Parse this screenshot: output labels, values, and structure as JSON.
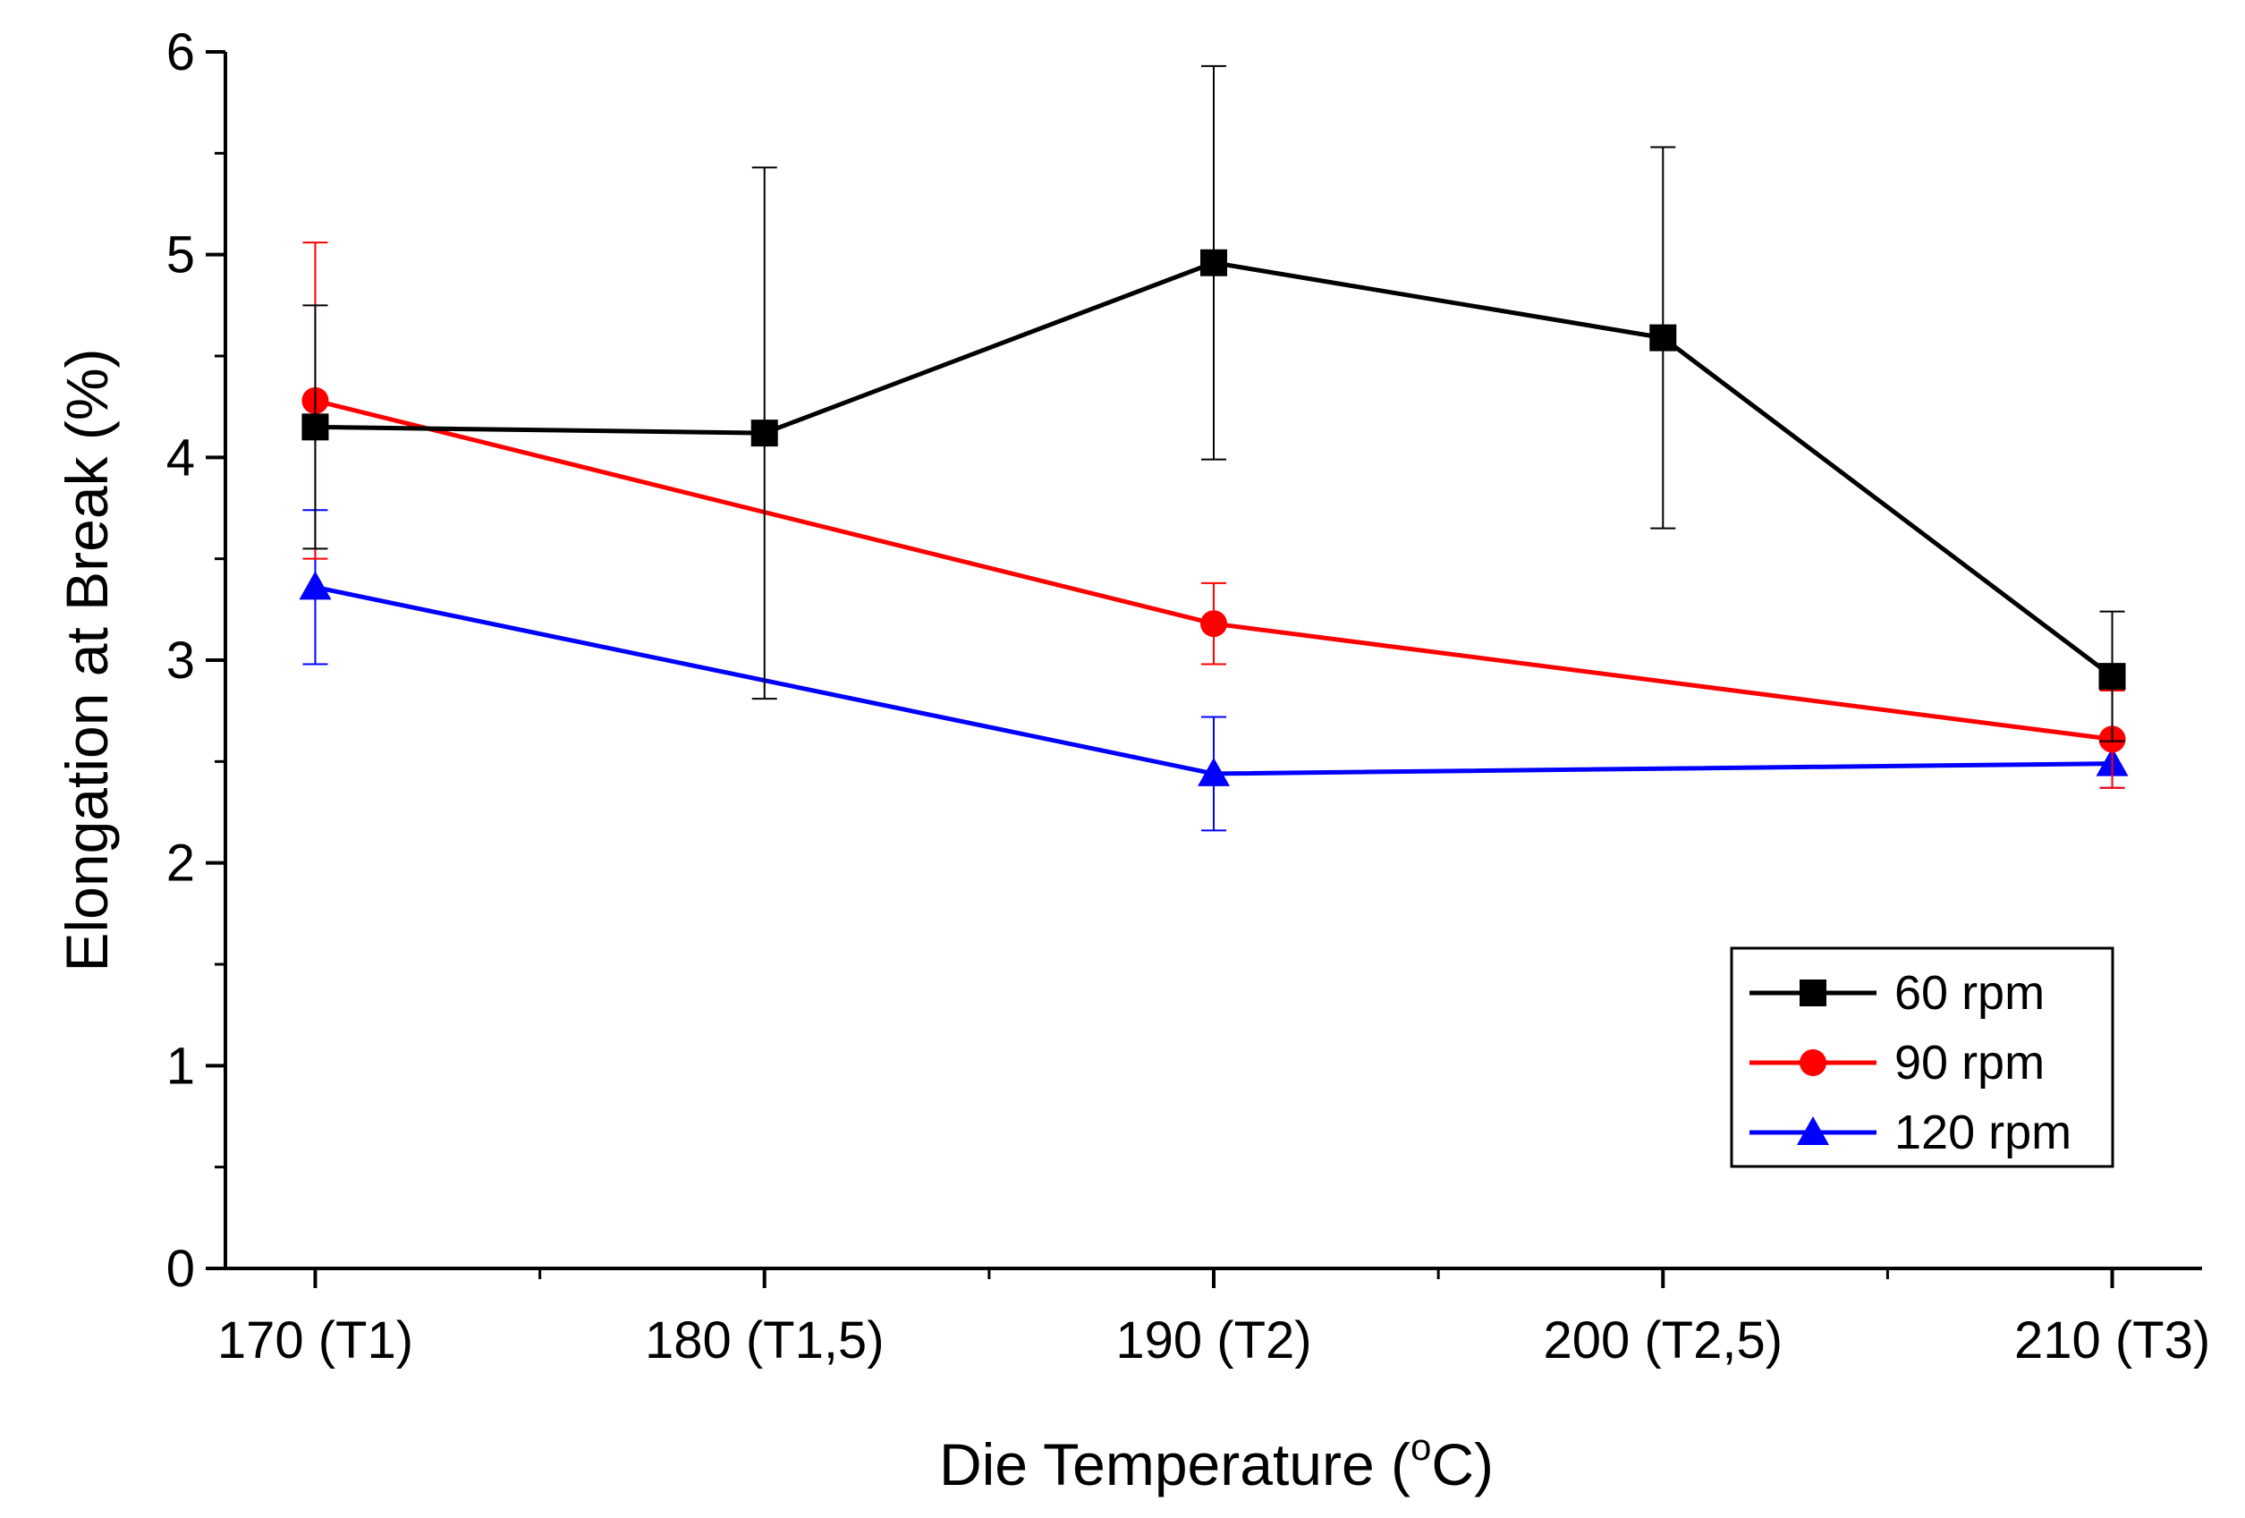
{
  "chart_data": {
    "type": "line",
    "title": "",
    "xlabel": "Die Temperature (",
    "xlabel_sup": "o",
    "xlabel_tail": "C)",
    "ylabel": "Elongation at Break (%)",
    "categories": [
      "170 (T1)",
      "180 (T1,5)",
      "190 (T2)",
      "200 (T2,5)",
      "210 (T3)"
    ],
    "x": [
      170,
      180,
      190,
      200,
      210
    ],
    "xlim": [
      168,
      212
    ],
    "ylim": [
      0,
      6
    ],
    "yticks": [
      "0",
      "1",
      "2",
      "3",
      "4",
      "5",
      "6"
    ],
    "grid": false,
    "legend_position": "lower-right",
    "series": [
      {
        "name": "60 rpm",
        "color": "#000000",
        "marker": "square",
        "x": [
          170,
          180,
          190,
          200,
          210
        ],
        "values": [
          4.15,
          4.12,
          4.96,
          4.59,
          2.92
        ],
        "errors": [
          0.6,
          1.31,
          0.97,
          0.94,
          0.32
        ]
      },
      {
        "name": "90 rpm",
        "color": "#ff0000",
        "marker": "circle",
        "x": [
          170,
          190,
          210
        ],
        "values": [
          4.28,
          3.18,
          2.61
        ],
        "errors": [
          0.78,
          0.2,
          0.24
        ]
      },
      {
        "name": "120 rpm",
        "color": "#0000ff",
        "marker": "triangle",
        "x": [
          170,
          190,
          210
        ],
        "values": [
          3.36,
          2.44,
          2.49
        ],
        "errors": [
          0.38,
          0.28,
          0.12
        ]
      }
    ]
  }
}
